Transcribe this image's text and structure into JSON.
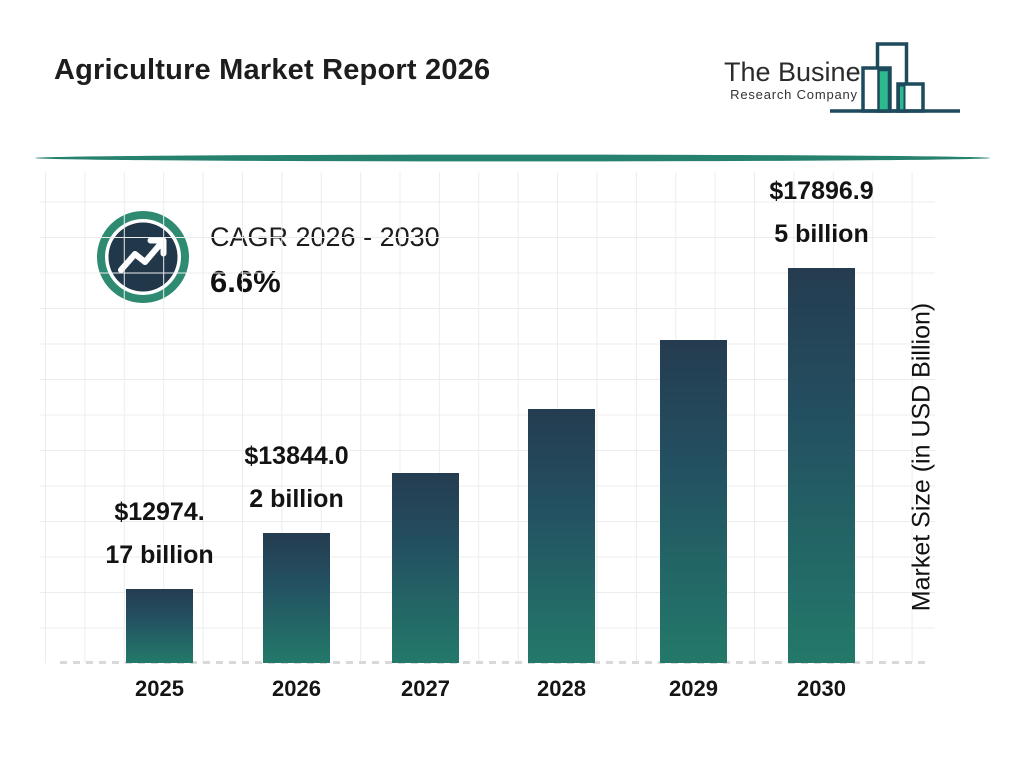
{
  "header": {
    "title": "Agriculture Market Report 2026",
    "logo": {
      "line1": "The Business",
      "line2": "Research Company",
      "icon": "bar-chart-skyline-icon"
    }
  },
  "cagr": {
    "icon": "trending-up-icon",
    "label": "CAGR 2026 - 2030",
    "value": "6.6%"
  },
  "chart_data": {
    "type": "bar",
    "title": "Agriculture Market Report 2026",
    "categories": [
      "2025",
      "2026",
      "2027",
      "2028",
      "2029",
      "2030"
    ],
    "values": [
      12974.17,
      13844.02,
      14762,
      15741,
      16785,
      17896.95
    ],
    "values_estimated": [
      false,
      false,
      true,
      true,
      true,
      false
    ],
    "value_label_lines": [
      [
        "$12974.",
        "17 billion"
      ],
      [
        "$13844.0",
        "2 billion"
      ],
      null,
      null,
      null,
      [
        "$17896.9",
        "5 billion"
      ]
    ],
    "xlabel": "",
    "ylabel": "Market Size (in USD Billion)",
    "ylim": [
      11850,
      18350
    ],
    "grid": true,
    "legend": false,
    "baseline_style": "dashed"
  },
  "colors": {
    "bar_top": "#253c50",
    "bar_bottom": "#23796a",
    "accent_teal": "#27816f",
    "badge_ring": "#2e8b72",
    "badge_inner": "#21374a",
    "logo_green": "#2cba8c",
    "logo_outline": "#1d4a5c",
    "grid_line": "#ececee",
    "baseline_dash": "#d9d9d9",
    "text": "#1b1b1b"
  }
}
